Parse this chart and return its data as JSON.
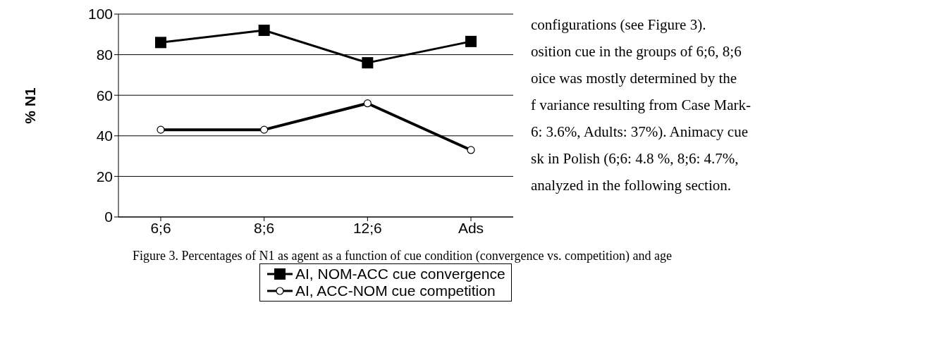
{
  "chart_data": {
    "type": "line",
    "ylabel": "% N1",
    "categories": [
      "6;6",
      "8;6",
      "12;6",
      "Ads"
    ],
    "series": [
      {
        "name": "AI, NOM-ACC cue convergence",
        "color": "#000000",
        "marker": "square",
        "values": [
          86,
          92,
          76,
          86.5
        ]
      },
      {
        "name": "AI, ACC-NOM cue competition",
        "color": "#000000",
        "marker": "circle",
        "values": [
          43,
          43,
          56,
          33
        ]
      }
    ],
    "ylim": [
      0,
      100
    ],
    "yticks": [
      0,
      20,
      40,
      60,
      80,
      100
    ],
    "grid": "y",
    "legend": "bottom",
    "annotations": [
      "configurations (see Figure 3).",
      "osition cue in the groups of 6;6, 8;6",
      "oice was mostly determined by the",
      "f variance resulting from Case Mark-",
      "6: 3.6%, Adults: 37%). Animacy cue",
      "sk in Polish (6;6: 4.8 %, 8;6: 4.7%,",
      "analyzed in the following section.",
      "Figure 3. Percentages of N1 as agent as a function of cue condition (convergence vs. competition) and age"
    ]
  }
}
